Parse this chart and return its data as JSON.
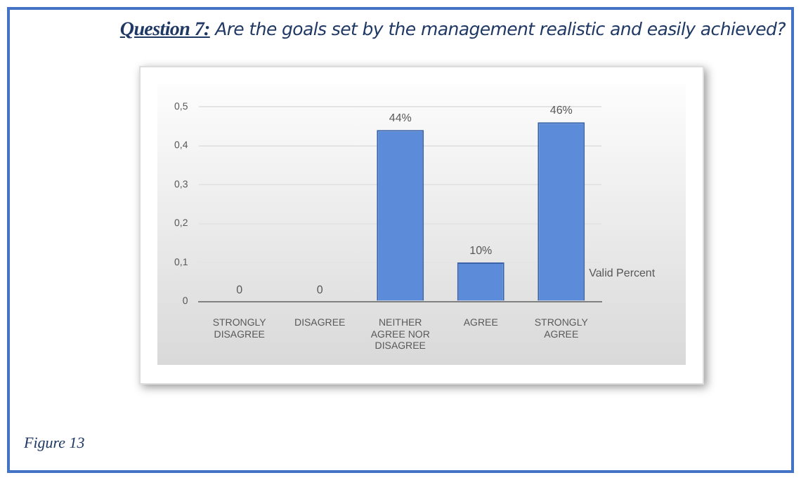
{
  "chart_data": {
    "type": "bar",
    "title": "Question 7: Are the goals set by the management realistic and easily achieved?",
    "categories": [
      "STRONGLY DISAGREE",
      "DISAGREE",
      "NEITHER AGREE NOR DISAGREE",
      "AGREE",
      "STRONGLY AGREE"
    ],
    "series": [
      {
        "name": "Valid Percent",
        "color": "#5b8bd9",
        "values": [
          0,
          0,
          0.44,
          0.1,
          0.46
        ],
        "value_labels": [
          "0",
          "0",
          "44%",
          "10%",
          "46%"
        ]
      }
    ],
    "ylim": [
      0,
      0.5
    ],
    "yticks": [
      0,
      {
        "value": 0.1,
        "label": "0,1"
      },
      {
        "value": 0.2,
        "label": "0,2"
      },
      {
        "value": 0.3,
        "label": "0,3"
      },
      {
        "value": 0.4,
        "label": "0,4"
      },
      {
        "value": 0.5,
        "label": "0,5"
      }
    ],
    "grid": "y",
    "annotations": [
      "Figure 13"
    ]
  }
}
